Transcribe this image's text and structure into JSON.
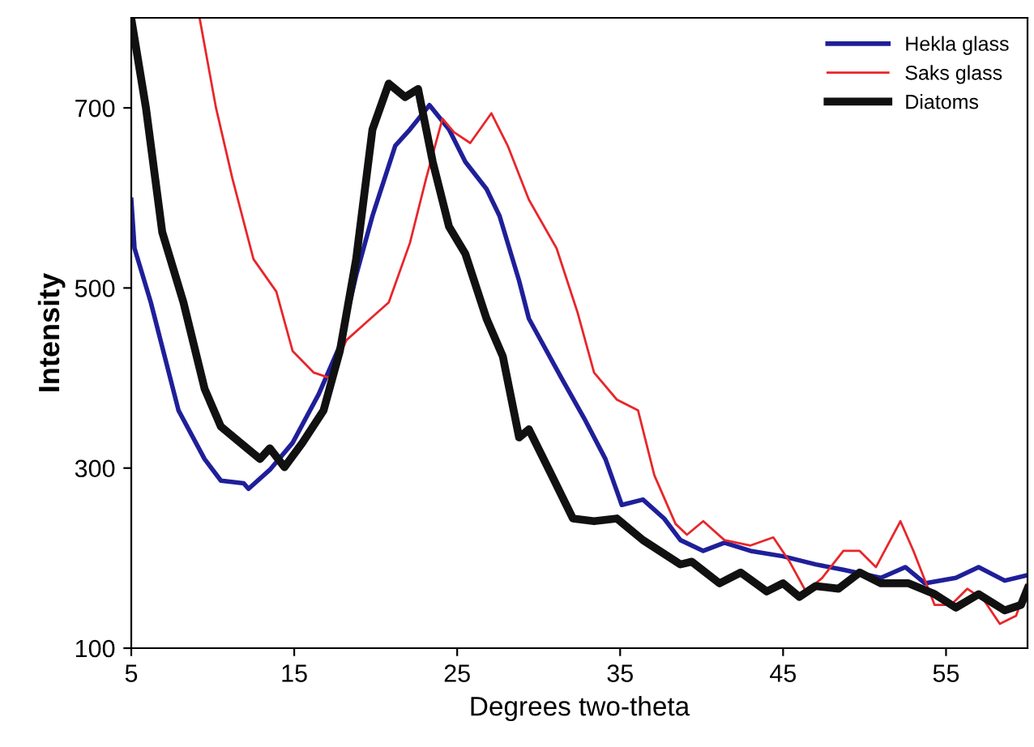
{
  "chart_data": {
    "type": "line",
    "xlabel": "Degrees two-theta",
    "ylabel": "Intensity",
    "xlim": [
      5,
      60
    ],
    "ylim": [
      100,
      800
    ],
    "xticks": [
      5,
      15,
      25,
      35,
      45,
      55
    ],
    "yticks": [
      100,
      300,
      500,
      700
    ],
    "grid": false,
    "legend": "top right",
    "marker": "none",
    "line_style": "solid",
    "series": [
      {
        "name": "Hekla glass",
        "color": "#1f1f9a",
        "x": [
          5,
          5.2,
          6.2,
          7.9,
          9.5,
          10.5,
          11.9,
          12.2,
          13.5,
          14.9,
          16.5,
          17.8,
          18.8,
          19.8,
          21.2,
          22.1,
          23.3,
          24.5,
          25.5,
          26.8,
          27.6,
          28.8,
          29.4,
          31.4,
          32.8,
          34.1,
          35.1,
          36.4,
          37.7,
          38.7,
          40.1,
          41.4,
          43.0,
          45.0,
          47.0,
          48.7,
          51.0,
          52.5,
          53.7,
          55.6,
          57.0,
          58.6,
          60
        ],
        "values": [
          598,
          544,
          484,
          364,
          310,
          286,
          283,
          277,
          298,
          328,
          382,
          436,
          514,
          580,
          658,
          676,
          703,
          676,
          640,
          610,
          580,
          508,
          466,
          400,
          355,
          310,
          259,
          265,
          244,
          220,
          208,
          217,
          208,
          202,
          193,
          187,
          178,
          190,
          172,
          178,
          190,
          175,
          181
        ]
      },
      {
        "name": "Saks glass",
        "color": "#e8262a",
        "x": [
          9.2,
          10.2,
          11.2,
          12.5,
          13.9,
          14.9,
          16.2,
          17.2,
          18.2,
          19.5,
          20.8,
          22.1,
          23.1,
          24.1,
          24.8,
          25.8,
          27.1,
          28.1,
          29.4,
          31.1,
          32.4,
          33.4,
          34.8,
          36.1,
          37.1,
          38.4,
          39.1,
          40.1,
          41.4,
          43.0,
          44.4,
          45.4,
          46.4,
          47.4,
          48.7,
          49.7,
          50.7,
          52.2,
          53.0,
          54.3,
          55.3,
          56.3,
          57.3,
          58.3,
          59.3,
          60
        ],
        "values": [
          799,
          700,
          622,
          532,
          496,
          430,
          406,
          400,
          442,
          463,
          484,
          550,
          622,
          688,
          673,
          661,
          694,
          658,
          598,
          544,
          472,
          406,
          376,
          364,
          292,
          238,
          226,
          241,
          220,
          214,
          223,
          196,
          163,
          178,
          208,
          208,
          190,
          241,
          208,
          148,
          148,
          166,
          154,
          127,
          136,
          172
        ]
      },
      {
        "name": "Diatoms",
        "color": "#111111",
        "x": [
          5,
          5.9,
          6.9,
          8.2,
          9.5,
          10.5,
          11.5,
          12.9,
          13.5,
          14.4,
          15.5,
          16.8,
          17.8,
          18.8,
          19.8,
          20.8,
          21.8,
          22.6,
          23.5,
          24.5,
          25.5,
          26.8,
          27.8,
          28.8,
          29.4,
          30.8,
          32.1,
          33.4,
          34.8,
          36.4,
          38.7,
          39.4,
          41.1,
          42.4,
          44.0,
          45.0,
          46.0,
          47.0,
          48.4,
          49.7,
          51.0,
          52.7,
          54.3,
          55.6,
          57.0,
          58.6,
          59.6,
          60
        ],
        "values": [
          799,
          700,
          562,
          484,
          388,
          346,
          331,
          310,
          322,
          301,
          328,
          364,
          430,
          532,
          676,
          727,
          712,
          721,
          640,
          568,
          538,
          466,
          424,
          334,
          343,
          292,
          244,
          241,
          244,
          220,
          193,
          196,
          172,
          184,
          163,
          172,
          157,
          169,
          166,
          184,
          172,
          172,
          160,
          145,
          160,
          142,
          148,
          166
        ]
      }
    ]
  }
}
